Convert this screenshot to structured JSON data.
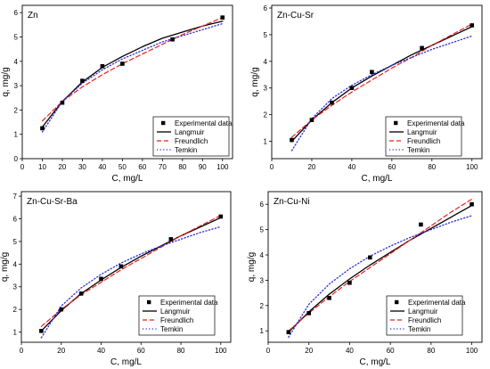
{
  "chart_data": [
    {
      "type": "scatter",
      "title": "Zn",
      "xlabel": "C, mg/L",
      "ylabel": "q, mg/g",
      "xlim": [
        0,
        105
      ],
      "ylim": [
        0,
        6.3
      ],
      "xticks": [
        0,
        10,
        20,
        30,
        40,
        50,
        60,
        70,
        80,
        90,
        100
      ],
      "yticks": [
        0,
        1,
        2,
        3,
        4,
        5,
        6
      ],
      "legend_position": "bottom-right",
      "legend": [
        "Experimental data",
        "Langmuir",
        "Freundlich",
        "Temkin"
      ],
      "points": {
        "name": "Experimental data",
        "x": [
          10,
          20,
          30,
          40,
          50,
          75,
          100
        ],
        "y": [
          1.25,
          2.3,
          3.2,
          3.8,
          3.9,
          4.9,
          5.8
        ]
      },
      "series": [
        {
          "name": "Langmuir",
          "x": [
            10,
            20,
            30,
            40,
            50,
            60,
            70,
            80,
            90,
            100
          ],
          "y": [
            1.3,
            2.35,
            3.15,
            3.75,
            4.2,
            4.6,
            4.95,
            5.2,
            5.45,
            5.65
          ]
        },
        {
          "name": "Freundlich",
          "x": [
            10,
            20,
            30,
            40,
            50,
            60,
            70,
            80,
            90,
            100
          ],
          "y": [
            1.55,
            2.35,
            2.95,
            3.45,
            3.9,
            4.3,
            4.7,
            5.1,
            5.45,
            5.8
          ]
        },
        {
          "name": "Temkin",
          "x": [
            10,
            20,
            30,
            40,
            50,
            60,
            70,
            80,
            90,
            100
          ],
          "y": [
            1.1,
            2.35,
            3.1,
            3.65,
            4.1,
            4.45,
            4.8,
            5.05,
            5.3,
            5.55
          ]
        }
      ]
    },
    {
      "type": "scatter",
      "title": "Zn-Cu-Sr",
      "xlabel": "C, mg/L",
      "ylabel": "q, mg/g",
      "xlim": [
        0,
        105
      ],
      "ylim": [
        0.35,
        6.1
      ],
      "xticks": [
        0,
        20,
        40,
        60,
        80,
        100
      ],
      "yticks": [
        1,
        2,
        3,
        4,
        5,
        6
      ],
      "legend_position": "bottom-right",
      "legend": [
        "Experimental data",
        "Langmuir",
        "Freundlich",
        "Temkin"
      ],
      "points": {
        "name": "Experimental data",
        "x": [
          10,
          20,
          30,
          40,
          50,
          75,
          100
        ],
        "y": [
          1.05,
          1.8,
          2.45,
          3.0,
          3.6,
          4.5,
          5.35
        ]
      },
      "series": [
        {
          "name": "Langmuir",
          "x": [
            10,
            20,
            30,
            40,
            50,
            60,
            70,
            80,
            90,
            100
          ],
          "y": [
            1.0,
            1.8,
            2.45,
            3.0,
            3.45,
            3.85,
            4.25,
            4.6,
            4.95,
            5.3
          ]
        },
        {
          "name": "Freundlich",
          "x": [
            10,
            20,
            30,
            40,
            50,
            60,
            70,
            80,
            90,
            100
          ],
          "y": [
            1.15,
            1.8,
            2.35,
            2.85,
            3.3,
            3.75,
            4.15,
            4.6,
            5.0,
            5.4
          ]
        },
        {
          "name": "Temkin",
          "x": [
            10,
            20,
            30,
            40,
            50,
            60,
            70,
            80,
            90,
            100
          ],
          "y": [
            0.65,
            1.85,
            2.6,
            3.1,
            3.5,
            3.85,
            4.15,
            4.45,
            4.7,
            4.95
          ]
        }
      ]
    },
    {
      "type": "scatter",
      "title": "Zn-Cu-Sr-Ba",
      "xlabel": "C, mg/L",
      "ylabel": "q, mg/g",
      "xlim": [
        0,
        105
      ],
      "ylim": [
        0.55,
        7.2
      ],
      "xticks": [
        0,
        20,
        40,
        60,
        80,
        100
      ],
      "yticks": [
        1,
        2,
        3,
        4,
        5,
        6,
        7
      ],
      "legend_position": "bottom-right",
      "legend": [
        "Experimental data",
        "Langmuir",
        "Freundlich",
        "Temkin"
      ],
      "points": {
        "name": "Experimental data",
        "x": [
          10,
          20,
          30,
          40,
          50,
          75,
          100
        ],
        "y": [
          1.05,
          2.0,
          2.7,
          3.35,
          3.9,
          5.1,
          6.1
        ]
      },
      "series": [
        {
          "name": "Langmuir",
          "x": [
            10,
            20,
            30,
            40,
            50,
            60,
            70,
            80,
            90,
            100
          ],
          "y": [
            1.05,
            1.95,
            2.7,
            3.3,
            3.85,
            4.35,
            4.8,
            5.25,
            5.65,
            6.05
          ]
        },
        {
          "name": "Freundlich",
          "x": [
            10,
            20,
            30,
            40,
            50,
            60,
            70,
            80,
            90,
            100
          ],
          "y": [
            1.25,
            2.0,
            2.65,
            3.2,
            3.75,
            4.25,
            4.75,
            5.25,
            5.7,
            6.15
          ]
        },
        {
          "name": "Temkin",
          "x": [
            10,
            20,
            30,
            40,
            50,
            60,
            70,
            80,
            90,
            100
          ],
          "y": [
            0.75,
            2.15,
            2.95,
            3.55,
            4.05,
            4.45,
            4.8,
            5.1,
            5.4,
            5.65
          ]
        }
      ]
    },
    {
      "type": "scatter",
      "title": "Zn-Cu-Ni",
      "xlabel": "C, mg/L",
      "ylabel": "q, mg/g",
      "xlim": [
        0,
        105
      ],
      "ylim": [
        0.55,
        6.5
      ],
      "xticks": [
        0,
        20,
        40,
        60,
        80,
        100
      ],
      "yticks": [
        1,
        2,
        3,
        4,
        5,
        6
      ],
      "legend_position": "bottom-right",
      "legend": [
        "Experimental data",
        "Langmuir",
        "Freundlich",
        "Temkin"
      ],
      "points": {
        "name": "Experimental data",
        "x": [
          10,
          20,
          30,
          40,
          50,
          75,
          100
        ],
        "y": [
          0.95,
          1.7,
          2.3,
          2.9,
          3.9,
          5.2,
          6.0
        ]
      },
      "series": [
        {
          "name": "Langmuir",
          "x": [
            10,
            20,
            30,
            40,
            50,
            60,
            70,
            80,
            90,
            100
          ],
          "y": [
            0.95,
            1.75,
            2.45,
            3.05,
            3.6,
            4.1,
            4.6,
            5.05,
            5.5,
            5.95
          ]
        },
        {
          "name": "Freundlich",
          "x": [
            10,
            20,
            30,
            40,
            50,
            60,
            70,
            80,
            90,
            100
          ],
          "y": [
            1.0,
            1.7,
            2.35,
            2.95,
            3.5,
            4.05,
            4.6,
            5.15,
            5.7,
            6.2
          ]
        },
        {
          "name": "Temkin",
          "x": [
            10,
            20,
            30,
            40,
            50,
            60,
            70,
            80,
            90,
            100
          ],
          "y": [
            0.75,
            2.05,
            2.85,
            3.45,
            3.95,
            4.35,
            4.7,
            5.0,
            5.3,
            5.55
          ]
        }
      ]
    }
  ],
  "series_colors": {
    "Experimental data": "#000000",
    "Langmuir": "#000000",
    "Freundlich": "#e8201f",
    "Temkin": "#2b2bd6"
  }
}
